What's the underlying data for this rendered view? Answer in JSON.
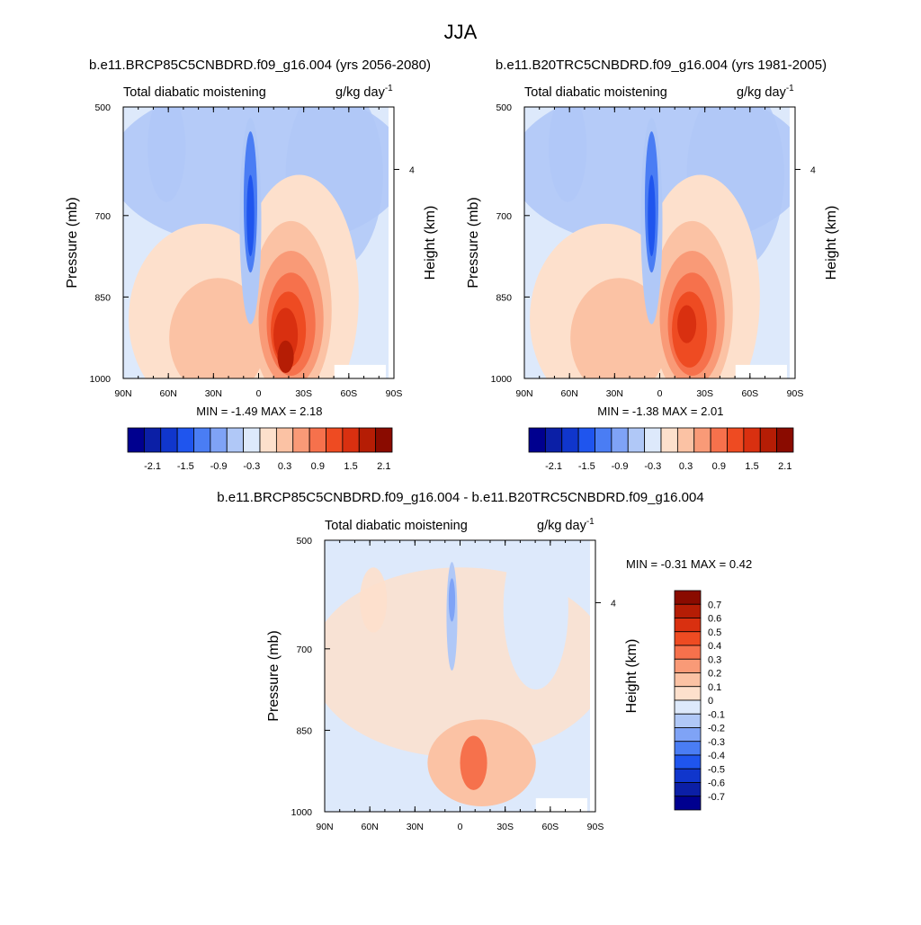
{
  "page_title": "JJA",
  "chart_data": [
    {
      "type": "heatmap",
      "id": "future",
      "title": "b.e11.BRCP85C5CNBDRD.f09_g16.004 (yrs 2056-2080)",
      "field_label": "Total diabatic moistening",
      "units_label": "g/kg day",
      "units_superscript": "-1",
      "ylabel": "Pressure (mb)",
      "y2label": "Height (km)",
      "x_ticks": [
        "90N",
        "60N",
        "30N",
        "0",
        "30S",
        "60S",
        "90S"
      ],
      "y_ticks": [
        "500",
        "700",
        "850",
        "1000"
      ],
      "y2_ticks": [
        "4"
      ],
      "stats": {
        "min_label": "MIN =",
        "min": "-1.49",
        "max_label": "MAX =",
        "max": "2.18"
      },
      "colorbar": {
        "orientation": "horizontal",
        "labels": [
          "-2.1",
          "-1.5",
          "-0.9",
          "-0.3",
          "0.3",
          "0.9",
          "1.5",
          "2.1"
        ]
      }
    },
    {
      "type": "heatmap",
      "id": "historical",
      "title": "b.e11.B20TRC5CNBDRD.f09_g16.004 (yrs 1981-2005)",
      "field_label": "Total diabatic moistening",
      "units_label": "g/kg day",
      "units_superscript": "-1",
      "ylabel": "Pressure (mb)",
      "y2label": "Height (km)",
      "x_ticks": [
        "90N",
        "60N",
        "30N",
        "0",
        "30S",
        "60S",
        "90S"
      ],
      "y_ticks": [
        "500",
        "700",
        "850",
        "1000"
      ],
      "y2_ticks": [
        "4"
      ],
      "stats": {
        "min_label": "MIN =",
        "min": "-1.38",
        "max_label": "MAX =",
        "max": "2.01"
      },
      "colorbar": {
        "orientation": "horizontal",
        "labels": [
          "-2.1",
          "-1.5",
          "-0.9",
          "-0.3",
          "0.3",
          "0.9",
          "1.5",
          "2.1"
        ]
      }
    },
    {
      "type": "heatmap",
      "id": "difference",
      "title": "b.e11.BRCP85C5CNBDRD.f09_g16.004 - b.e11.B20TRC5CNBDRD.f09_g16.004",
      "field_label": "Total diabatic moistening",
      "units_label": "g/kg day",
      "units_superscript": "-1",
      "ylabel": "Pressure (mb)",
      "y2label": "Height (km)",
      "x_ticks": [
        "90N",
        "60N",
        "30N",
        "0",
        "30S",
        "60S",
        "90S"
      ],
      "y_ticks": [
        "500",
        "700",
        "850",
        "1000"
      ],
      "y2_ticks": [
        "4"
      ],
      "stats": {
        "min_label": "MIN =",
        "min": "-0.31",
        "max_label": "MAX =",
        "max": "0.42"
      },
      "colorbar": {
        "orientation": "vertical",
        "labels": [
          "0.7",
          "0.6",
          "0.5",
          "0.4",
          "0.3",
          "0.2",
          "0.1",
          "0",
          "-0.1",
          "-0.2",
          "-0.3",
          "-0.4",
          "-0.5",
          "-0.6",
          "-0.7"
        ]
      }
    }
  ],
  "palette": [
    "#00008f",
    "#0b1fa6",
    "#1036cc",
    "#1f55ee",
    "#4a7df4",
    "#7fa3f6",
    "#b0c8f7",
    "#dde9fb",
    "#fde0cc",
    "#fbc2a4",
    "#f99a77",
    "#f6714c",
    "#ee4b22",
    "#d93010",
    "#b51d05",
    "#8a0b00"
  ]
}
